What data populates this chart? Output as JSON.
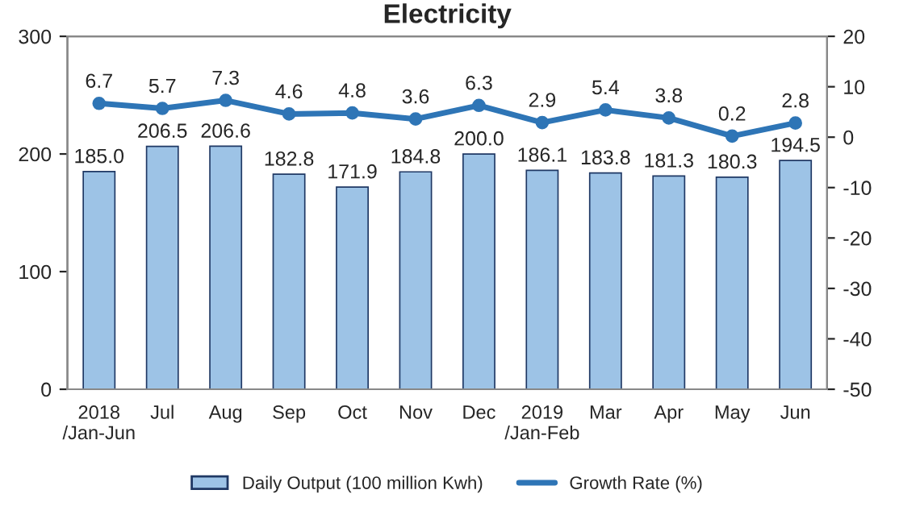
{
  "chart_data": {
    "type": "bar",
    "title": "Electricity",
    "categories": [
      "2018\n/Jan-Jun",
      "Jul",
      "Aug",
      "Sep",
      "Oct",
      "Nov",
      "Dec",
      "2019\n/Jan-Feb",
      "Mar",
      "Apr",
      "May",
      "Jun"
    ],
    "series": [
      {
        "name": "Daily Output (100 million Kwh)",
        "color": "#9dc3e6",
        "values": [
          185.0,
          206.5,
          206.6,
          182.8,
          171.9,
          184.8,
          200.0,
          186.1,
          183.8,
          181.3,
          180.3,
          194.5
        ],
        "value_labels": [
          "185.0",
          "206.5",
          "206.6",
          "182.8",
          "171.9",
          "184.8",
          "200.0",
          "186.1",
          "183.8",
          "181.3",
          "180.3",
          "194.5"
        ]
      },
      {
        "name": "Growth Rate (%)",
        "type": "line",
        "axis": "y2",
        "color": "#2e75b6",
        "marker": "circle",
        "values": [
          6.7,
          5.7,
          7.3,
          4.6,
          4.8,
          3.6,
          6.3,
          2.9,
          5.4,
          3.8,
          0.2,
          2.8
        ],
        "value_labels": [
          "6.7",
          "5.7",
          "7.3",
          "4.6",
          "4.8",
          "3.6",
          "6.3",
          "2.9",
          "5.4",
          "3.8",
          "0.2",
          "2.8"
        ]
      }
    ],
    "ylim": [
      0,
      300
    ],
    "yticks": [
      0,
      100,
      200,
      300
    ],
    "y2lim": [
      -50,
      20
    ],
    "y2ticks": [
      -50,
      -40,
      -30,
      -20,
      -10,
      0,
      10,
      20
    ],
    "legend": "bottom",
    "grid": false
  }
}
